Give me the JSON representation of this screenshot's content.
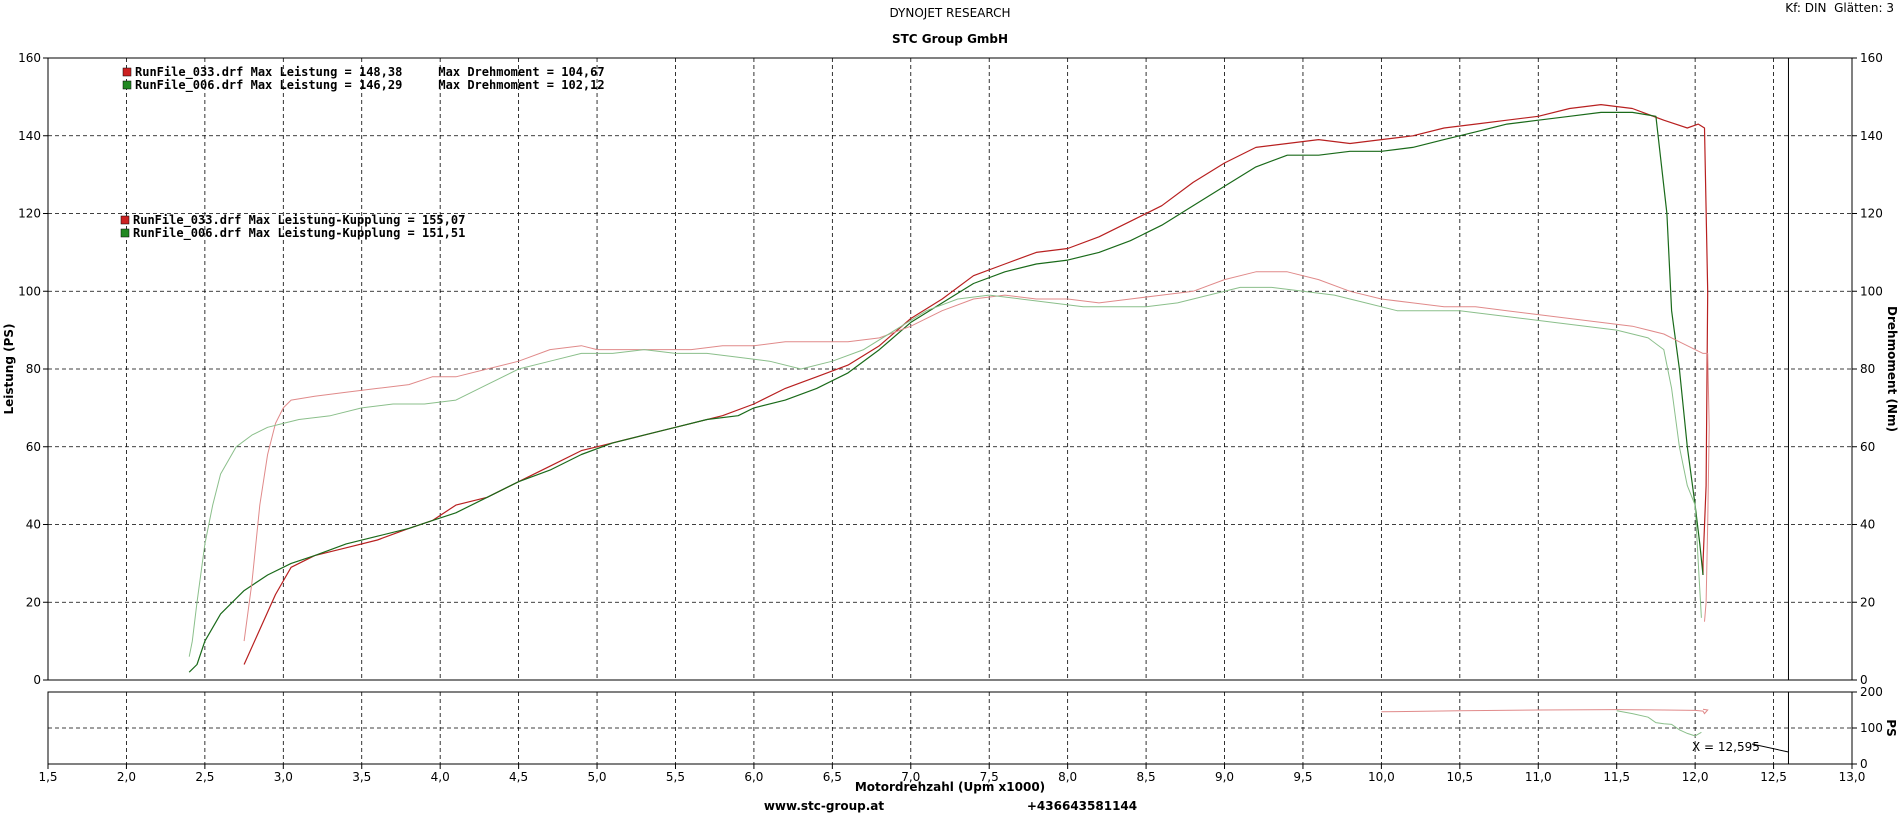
{
  "header": {
    "supertitle": "DYNOJET RESEARCH",
    "title": "STC Group GmbH",
    "info": "Kf: DIN  Glätten: 3"
  },
  "footer": {
    "website": "www.stc-group.at",
    "phone": "+436643581144"
  },
  "legends": {
    "group1": [
      {
        "text": "RunFile_033.drf Max Leistung = 148,38     Max Drehmoment = 104,67",
        "color": "#cc2222"
      },
      {
        "text": "RunFile_006.drf Max Leistung = 146,29     Max Drehmoment = 102,12",
        "color": "#228822"
      }
    ],
    "group2": [
      {
        "text": "RunFile_033.drf Max Leistung-Kupplung = 155,07",
        "color": "#cc2222"
      },
      {
        "text": "RunFile_006.drf Max Leistung-Kupplung = 151,51",
        "color": "#228822"
      }
    ]
  },
  "chart_data": {
    "type": "line",
    "title": "STC Group GmbH",
    "xlabel": "Motordrehzahl (Upm x1000)",
    "ylabel": "Leistung (PS)",
    "y2label": "Drehmoment (Nm)",
    "xlim": [
      1.5,
      13.0
    ],
    "ylim": [
      0,
      160
    ],
    "y2lim": [
      0,
      160
    ],
    "x_ticks": [
      "1,5",
      "2,0",
      "2,5",
      "3,0",
      "3,5",
      "4,0",
      "4,5",
      "5,0",
      "5,5",
      "6,0",
      "6,5",
      "7,0",
      "7,5",
      "8,0",
      "8,5",
      "9,0",
      "9,5",
      "10,0",
      "10,5",
      "11,0",
      "11,5",
      "12,0",
      "12,5",
      "13,0"
    ],
    "y_ticks": [
      "0",
      "20",
      "40",
      "60",
      "80",
      "100",
      "120",
      "140",
      "160"
    ],
    "grid": true,
    "cursor": {
      "x": 12.595,
      "label": "X = 12,595"
    },
    "series": [
      {
        "name": "RunFile_033.drf Leistung",
        "color": "#b82020",
        "width": 1.2,
        "x": [
          2.75,
          2.85,
          2.95,
          3.05,
          3.2,
          3.4,
          3.6,
          3.8,
          3.95,
          4.1,
          4.3,
          4.5,
          4.7,
          4.9,
          5.0,
          5.2,
          5.4,
          5.6,
          5.8,
          6.0,
          6.2,
          6.4,
          6.6,
          6.8,
          7.0,
          7.2,
          7.4,
          7.6,
          7.8,
          8.0,
          8.2,
          8.4,
          8.6,
          8.8,
          9.0,
          9.2,
          9.4,
          9.6,
          9.8,
          10.0,
          10.2,
          10.4,
          10.6,
          10.8,
          11.0,
          11.2,
          11.4,
          11.6,
          11.8,
          11.95,
          12.02,
          12.06,
          12.08,
          12.07,
          12.05,
          12.05
        ],
        "y": [
          4,
          13,
          22,
          29,
          32,
          34,
          36,
          39,
          41,
          45,
          47,
          51,
          55,
          59,
          60,
          62,
          64,
          66,
          68,
          71,
          75,
          78,
          81,
          86,
          93,
          98,
          104,
          107,
          110,
          111,
          114,
          118,
          122,
          128,
          133,
          137,
          138,
          139,
          138,
          139,
          140,
          142,
          143,
          144,
          145,
          147,
          148,
          147,
          144,
          142,
          143,
          142,
          100,
          50,
          30,
          27
        ]
      },
      {
        "name": "RunFile_006.drf Leistung",
        "color": "#1a6a1a",
        "width": 1.2,
        "x": [
          2.4,
          2.45,
          2.5,
          2.6,
          2.75,
          2.9,
          3.05,
          3.2,
          3.4,
          3.6,
          3.8,
          3.95,
          4.1,
          4.3,
          4.5,
          4.7,
          4.9,
          5.1,
          5.3,
          5.5,
          5.7,
          5.9,
          6.0,
          6.2,
          6.4,
          6.6,
          6.8,
          7.0,
          7.2,
          7.4,
          7.6,
          7.8,
          8.0,
          8.2,
          8.4,
          8.6,
          8.8,
          9.0,
          9.2,
          9.4,
          9.6,
          9.8,
          10.0,
          10.2,
          10.4,
          10.6,
          10.8,
          11.0,
          11.2,
          11.4,
          11.6,
          11.75,
          11.82,
          11.85,
          11.9,
          11.95,
          12.0,
          12.03,
          12.05
        ],
        "y": [
          2,
          4,
          10,
          17,
          23,
          27,
          30,
          32,
          35,
          37,
          39,
          41,
          43,
          47,
          51,
          54,
          58,
          61,
          63,
          65,
          67,
          68,
          70,
          72,
          75,
          79,
          85,
          92,
          97,
          102,
          105,
          107,
          108,
          110,
          113,
          117,
          122,
          127,
          132,
          135,
          135,
          136,
          136,
          137,
          139,
          141,
          143,
          144,
          145,
          146,
          146,
          145,
          120,
          95,
          80,
          60,
          45,
          35,
          27
        ]
      },
      {
        "name": "RunFile_033.drf Drehmoment",
        "color": "#e08a8a",
        "width": 1,
        "x": [
          2.75,
          2.8,
          2.85,
          2.9,
          2.95,
          3.0,
          3.05,
          3.2,
          3.4,
          3.6,
          3.8,
          3.95,
          4.1,
          4.3,
          4.5,
          4.7,
          4.9,
          5.0,
          5.2,
          5.4,
          5.6,
          5.8,
          6.0,
          6.2,
          6.4,
          6.6,
          6.8,
          7.0,
          7.2,
          7.4,
          7.6,
          7.8,
          8.0,
          8.2,
          8.4,
          8.6,
          8.8,
          9.0,
          9.2,
          9.4,
          9.6,
          9.8,
          10.0,
          10.2,
          10.4,
          10.6,
          10.8,
          11.0,
          11.2,
          11.4,
          11.6,
          11.8,
          11.9,
          12.0,
          12.05,
          12.08,
          12.09,
          12.08,
          12.07,
          12.06
        ],
        "y": [
          10,
          25,
          45,
          58,
          66,
          70,
          72,
          73,
          74,
          75,
          76,
          78,
          78,
          80,
          82,
          85,
          86,
          85,
          85,
          85,
          85,
          86,
          86,
          87,
          87,
          87,
          88,
          91,
          95,
          98,
          99,
          98,
          98,
          97,
          98,
          99,
          100,
          103,
          105,
          105,
          103,
          100,
          98,
          97,
          96,
          96,
          95,
          94,
          93,
          92,
          91,
          89,
          87,
          85,
          84,
          84,
          65,
          40,
          20,
          15
        ]
      },
      {
        "name": "RunFile_006.drf Drehmoment",
        "color": "#8bbf8b",
        "width": 1,
        "x": [
          2.4,
          2.42,
          2.45,
          2.5,
          2.55,
          2.6,
          2.7,
          2.8,
          2.9,
          3.0,
          3.1,
          3.3,
          3.5,
          3.7,
          3.9,
          4.1,
          4.3,
          4.5,
          4.7,
          4.9,
          5.1,
          5.3,
          5.5,
          5.7,
          5.9,
          6.1,
          6.3,
          6.5,
          6.7,
          6.9,
          7.1,
          7.3,
          7.5,
          7.7,
          7.9,
          8.1,
          8.3,
          8.5,
          8.7,
          8.9,
          9.1,
          9.3,
          9.5,
          9.7,
          9.9,
          10.1,
          10.3,
          10.5,
          10.7,
          10.9,
          11.1,
          11.3,
          11.5,
          11.7,
          11.8,
          11.85,
          11.9,
          11.95,
          12.0,
          12.02,
          12.04
        ],
        "y": [
          6,
          10,
          20,
          35,
          45,
          53,
          60,
          63,
          65,
          66,
          67,
          68,
          70,
          71,
          71,
          72,
          76,
          80,
          82,
          84,
          84,
          85,
          84,
          84,
          83,
          82,
          80,
          82,
          85,
          90,
          95,
          98,
          99,
          98,
          97,
          96,
          96,
          96,
          97,
          99,
          101,
          101,
          100,
          99,
          97,
          95,
          95,
          95,
          94,
          93,
          92,
          91,
          90,
          88,
          85,
          75,
          60,
          50,
          45,
          30,
          16
        ]
      }
    ],
    "sub_chart": {
      "ylabel": "PS",
      "ylim": [
        0,
        200
      ],
      "y_ticks": [
        "0",
        "100",
        "200"
      ],
      "series": [
        {
          "name": "RunFile_033.drf",
          "color": "#e08a8a",
          "width": 1,
          "x": [
            10.0,
            10.5,
            11.0,
            11.5,
            11.8,
            12.0,
            12.05,
            12.06,
            12.08,
            12.05
          ],
          "y": [
            145,
            148,
            150,
            151,
            150,
            149,
            147,
            140,
            150,
            152
          ]
        },
        {
          "name": "RunFile_006.drf",
          "color": "#8bbf8b",
          "width": 1,
          "x": [
            11.5,
            11.6,
            11.7,
            11.75,
            11.8,
            11.85,
            11.9,
            11.95,
            12.0,
            12.04
          ],
          "y": [
            148,
            140,
            130,
            115,
            112,
            110,
            95,
            85,
            78,
            88
          ]
        }
      ]
    }
  }
}
